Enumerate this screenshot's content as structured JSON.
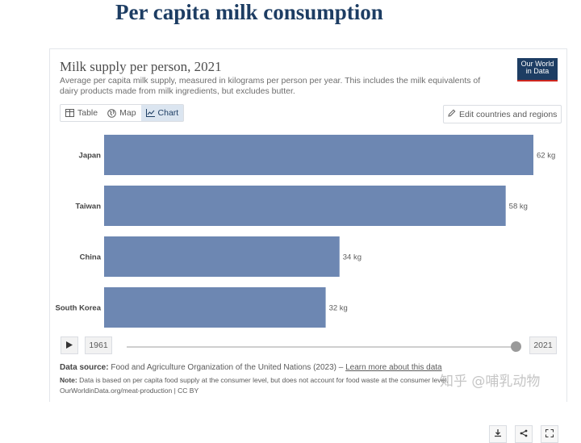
{
  "page": {
    "heading": "Per capita milk consumption"
  },
  "card": {
    "title": "Milk supply per person, 2021",
    "subtitle": "Average per capita milk supply, measured in kilograms per person per year. This includes the milk equivalents of dairy products made from milk ingredients, but excludes butter.",
    "logo_line1": "Our World",
    "logo_line2": "in Data"
  },
  "tabs": [
    {
      "label": "Table",
      "icon": "table-icon",
      "active": false
    },
    {
      "label": "Map",
      "icon": "globe-icon",
      "active": false
    },
    {
      "label": "Chart",
      "icon": "line-chart-icon",
      "active": true
    }
  ],
  "edit_button": {
    "label": "Edit countries and regions",
    "icon": "pencil-icon"
  },
  "timeline": {
    "start_year": "1961",
    "end_year": "2021",
    "position": 1.0
  },
  "footer": {
    "source_label": "Data source:",
    "source_text": "Food and Agriculture Organization of the United Nations (2023) –",
    "source_link": "Learn more about this data",
    "note_label": "Note:",
    "note_text": "Data is based on per capita food supply at the consumer level, but does not account for food waste at the consumer level.",
    "url": "OurWorldinData.org/meat-production | CC BY"
  },
  "watermark": "知乎 @哺乳动物",
  "colors": {
    "bar": "#6d87b2",
    "brand": "#1d3d63",
    "accent": "#ce261e"
  },
  "chart_data": {
    "type": "bar",
    "orientation": "horizontal",
    "categories": [
      "Japan",
      "Taiwan",
      "China",
      "South Korea"
    ],
    "values": [
      62,
      58,
      34,
      32
    ],
    "value_labels": [
      "62 kg",
      "58 kg",
      "34 kg",
      "32 kg"
    ],
    "unit": "kg",
    "xlim": [
      0,
      62
    ],
    "grid": false,
    "legend": "none"
  }
}
